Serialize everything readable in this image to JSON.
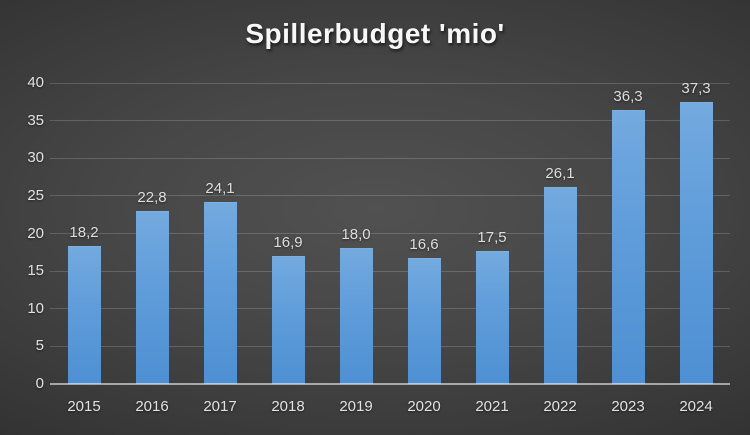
{
  "chart_data": {
    "type": "bar",
    "title": "Spillerbudget 'mio'",
    "categories": [
      "2015",
      "2016",
      "2017",
      "2018",
      "2019",
      "2020",
      "2021",
      "2022",
      "2023",
      "2024"
    ],
    "values": [
      18.2,
      22.8,
      24.1,
      16.9,
      18.0,
      16.6,
      17.5,
      26.1,
      36.3,
      37.3
    ],
    "value_labels": [
      "18,2",
      "22,8",
      "24,1",
      "16,9",
      "18,0",
      "16,6",
      "17,5",
      "26,1",
      "36,3",
      "37,3"
    ],
    "xlabel": "",
    "ylabel": "",
    "ylim": [
      0,
      40
    ],
    "yticks": [
      0,
      5,
      10,
      15,
      20,
      25,
      30,
      35,
      40
    ],
    "grid": true,
    "legend": false,
    "colors": {
      "bar_top": "#73aadf",
      "bar_bottom": "#4e90d3",
      "background_center": "#515151",
      "background_edge": "#242424",
      "gridline": "#5a5a5a",
      "axis_baseline": "#9e9e9e",
      "axis_text": "#e2e2e2",
      "title_text": "#f7f7f7"
    }
  }
}
